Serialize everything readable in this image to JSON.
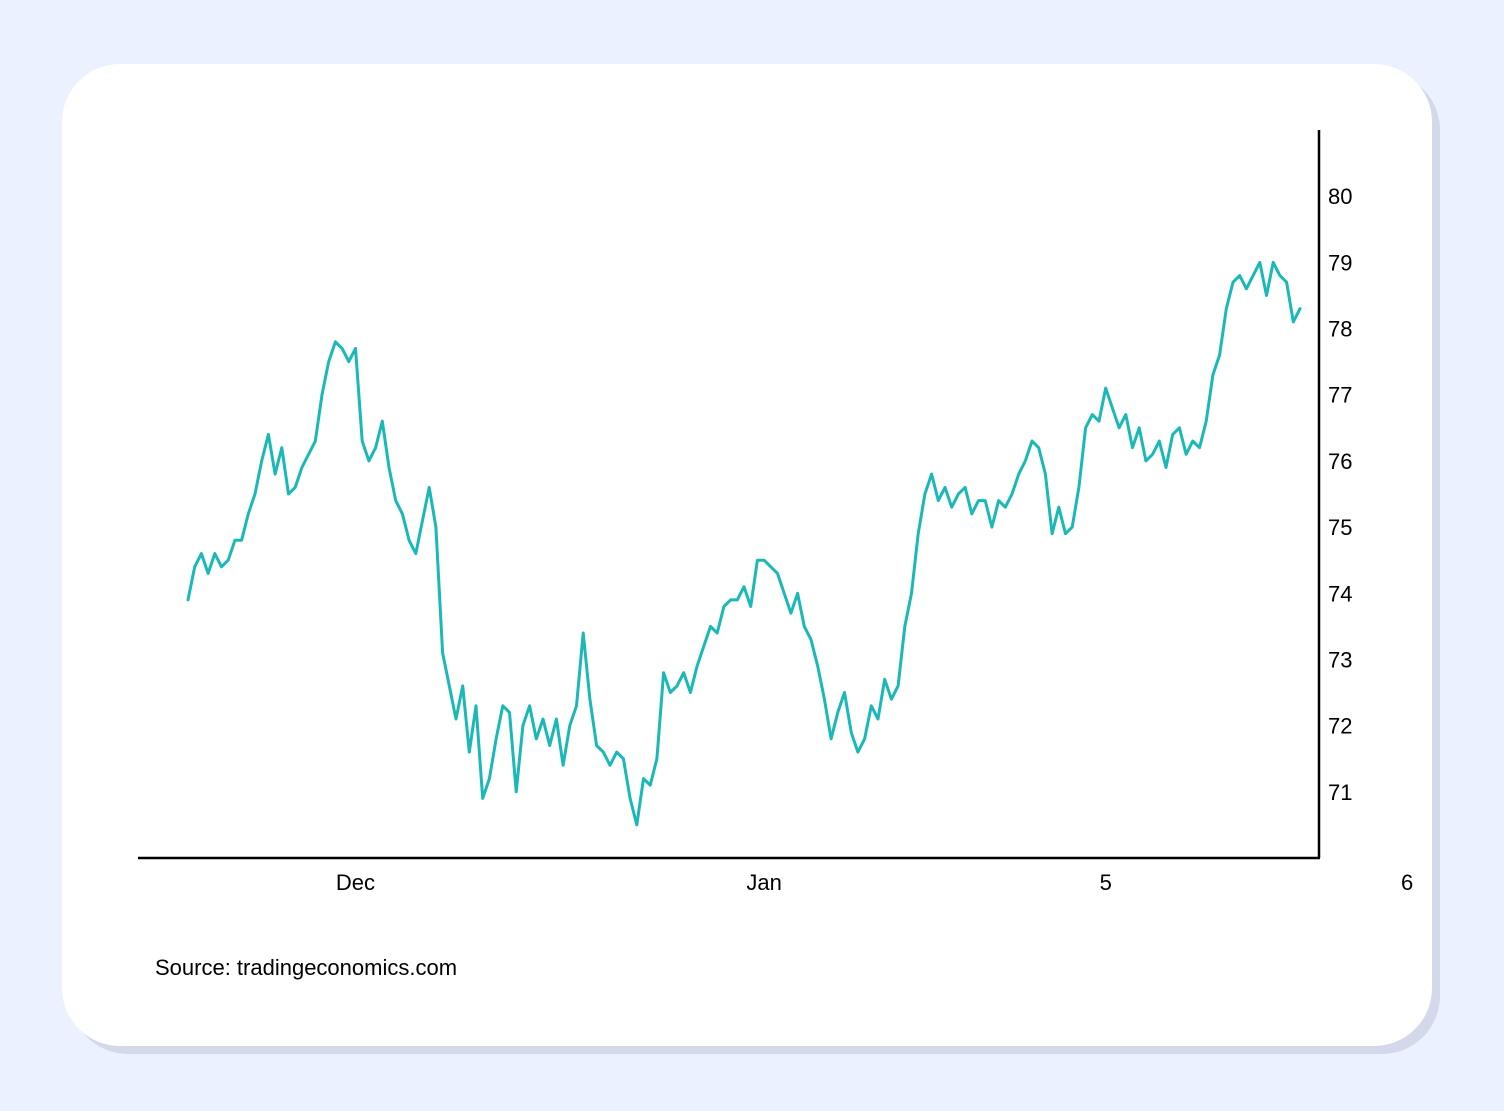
{
  "source_text": "Source: tradingeconomics.com",
  "chart_data": {
    "type": "line",
    "line_color": "#1bb8b8",
    "ylim": [
      70,
      81
    ],
    "y_ticks": [
      71,
      72,
      73,
      74,
      75,
      76,
      77,
      78,
      79,
      80
    ],
    "y_axis_position": "right",
    "grid": false,
    "x_ticks": [
      {
        "label": "Dec",
        "index": 25
      },
      {
        "label": "Jan",
        "index": 86
      },
      {
        "label": "5",
        "index": 137
      },
      {
        "label": "6",
        "index": 182
      }
    ],
    "series": [
      {
        "values": [
          73.9,
          74.4,
          74.6,
          74.3,
          74.6,
          74.4,
          74.5,
          74.8,
          74.8,
          75.2,
          75.5,
          76.0,
          76.4,
          75.8,
          76.2,
          75.5,
          75.6,
          75.9,
          76.1,
          76.3,
          77.0,
          77.5,
          77.8,
          77.7,
          77.5,
          77.7,
          76.3,
          76.0,
          76.2,
          76.6,
          75.9,
          75.4,
          75.2,
          74.8,
          74.6,
          75.1,
          75.6,
          75.0,
          73.1,
          72.6,
          72.1,
          72.6,
          71.6,
          72.3,
          70.9,
          71.2,
          71.8,
          72.3,
          72.2,
          71.0,
          72.0,
          72.3,
          71.8,
          72.1,
          71.7,
          72.1,
          71.4,
          72.0,
          72.3,
          73.4,
          72.4,
          71.7,
          71.6,
          71.4,
          71.6,
          71.5,
          70.9,
          70.5,
          71.2,
          71.1,
          71.5,
          72.8,
          72.5,
          72.6,
          72.8,
          72.5,
          72.9,
          73.2,
          73.5,
          73.4,
          73.8,
          73.9,
          73.9,
          74.1,
          73.8,
          74.5,
          74.5,
          74.4,
          74.3,
          74.0,
          73.7,
          74.0,
          73.5,
          73.3,
          72.9,
          72.4,
          71.8,
          72.2,
          72.5,
          71.9,
          71.6,
          71.8,
          72.3,
          72.1,
          72.7,
          72.4,
          72.6,
          73.5,
          74.0,
          74.9,
          75.5,
          75.8,
          75.4,
          75.6,
          75.3,
          75.5,
          75.6,
          75.2,
          75.4,
          75.4,
          75.0,
          75.4,
          75.3,
          75.5,
          75.8,
          76.0,
          76.3,
          76.2,
          75.8,
          74.9,
          75.3,
          74.9,
          75.0,
          75.6,
          76.5,
          76.7,
          76.6,
          77.1,
          76.8,
          76.5,
          76.7,
          76.2,
          76.5,
          76.0,
          76.1,
          76.3,
          75.9,
          76.4,
          76.5,
          76.1,
          76.3,
          76.2,
          76.6,
          77.3,
          77.6,
          78.3,
          78.7,
          78.8,
          78.6,
          78.8,
          79.0,
          78.5,
          79.0,
          78.8,
          78.7,
          78.1,
          78.3
        ]
      }
    ]
  }
}
